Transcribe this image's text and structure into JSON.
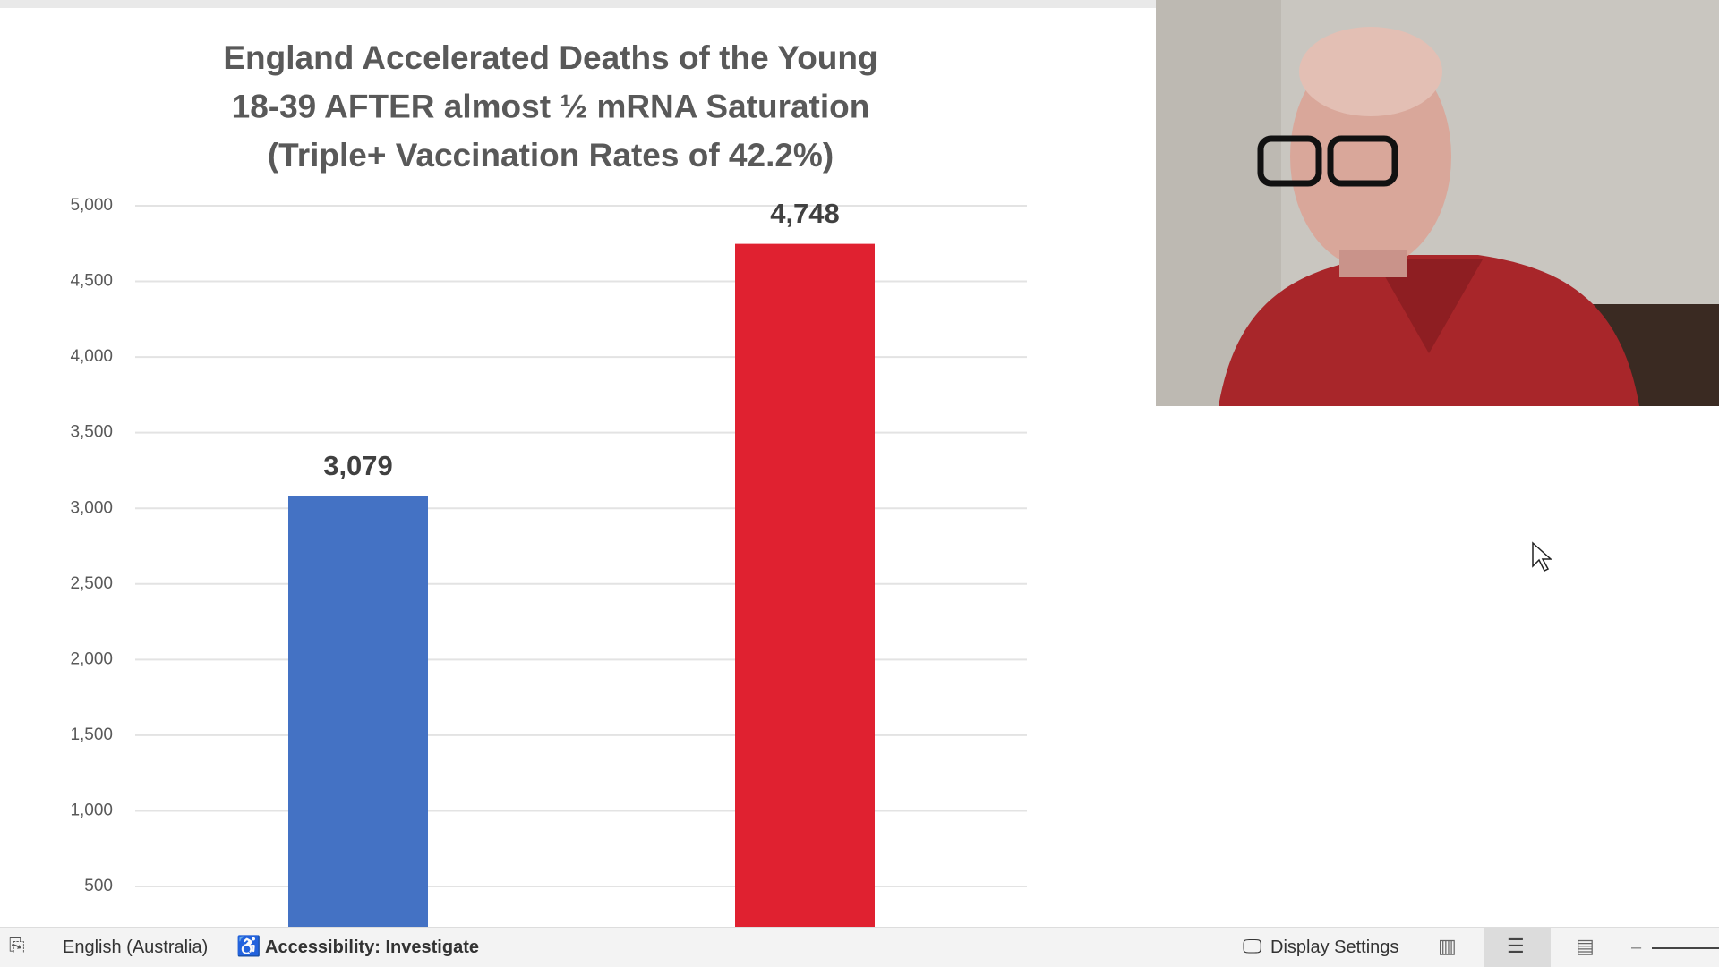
{
  "chart_data": {
    "type": "bar",
    "title": [
      "England Accelerated Deaths of the Young",
      "18-39 AFTER almost ½ mRNA Saturation",
      "(Triple+ Vaccination Rates of 42.2%)"
    ],
    "categories": [
      null,
      null
    ],
    "values": [
      3079,
      4748
    ],
    "value_labels": [
      "3,079",
      "4,748"
    ],
    "colors": [
      "#4472c4",
      "#e02130"
    ],
    "ylim": [
      0,
      5000
    ],
    "yticks": [
      {
        "value": 500,
        "label": "500"
      },
      {
        "value": 1000,
        "label": "1,000"
      },
      {
        "value": 1500,
        "label": "1,500"
      },
      {
        "value": 2000,
        "label": "2,000"
      },
      {
        "value": 2500,
        "label": "2,500"
      },
      {
        "value": 3000,
        "label": "3,000"
      },
      {
        "value": 3500,
        "label": "3,500"
      },
      {
        "value": 4000,
        "label": "4,000"
      },
      {
        "value": 4500,
        "label": "4,500"
      },
      {
        "value": 5000,
        "label": "5,000"
      }
    ],
    "grid": true
  },
  "status_bar": {
    "language": "English (Australia)",
    "accessibility": "Accessibility: Investigate",
    "display_settings": "Display Settings"
  }
}
